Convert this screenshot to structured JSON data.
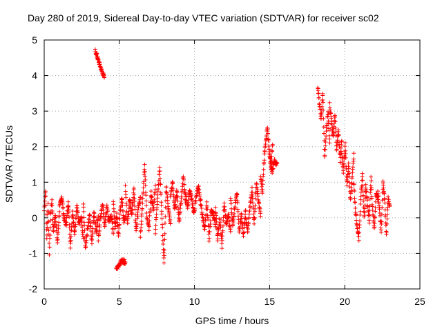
{
  "chart_data": {
    "type": "scatter",
    "title": "Day 280 of 2019, Sidereal Day-to-day VTEC variation (SDTVAR) for receiver sc02",
    "xlabel": "GPS time / hours",
    "ylabel": "SDTVAR / TECUs",
    "xlim": [
      0,
      25
    ],
    "ylim": [
      -2,
      5
    ],
    "xticks": [
      "0",
      "5",
      "10",
      "15",
      "20",
      "25"
    ],
    "yticks": [
      "-2",
      "-1",
      "0",
      "1",
      "2",
      "3",
      "4",
      "5"
    ],
    "grid": true,
    "marker": "+",
    "color": "#ff0000",
    "series": [
      {
        "name": "SDTVAR",
        "segments": [
          {
            "x0": 0.0,
            "x1": 0.6,
            "y": [
              0.2,
              0.8,
              -0.6,
              0.4,
              -1.0,
              0.1,
              0.5,
              -0.3
            ]
          },
          {
            "x0": 0.6,
            "x1": 1.6,
            "y": [
              -0.4,
              0.1,
              -0.7,
              0.3,
              0.6,
              0.0,
              -0.2,
              0.4
            ]
          },
          {
            "x0": 1.6,
            "x1": 2.6,
            "y": [
              0.5,
              -0.8,
              0.2,
              -0.5,
              0.4,
              -0.2,
              0.0,
              -0.6
            ]
          },
          {
            "x0": 2.6,
            "x1": 3.6,
            "y": [
              0.4,
              -0.9,
              -0.3,
              0.1,
              -0.7,
              0.2,
              -0.4,
              0.0
            ]
          },
          {
            "x0": 3.4,
            "x1": 4.0,
            "y": [
              4.7,
              4.5,
              4.3,
              4.1,
              3.95
            ]
          },
          {
            "x0": 3.6,
            "x1": 4.6,
            "y": [
              -0.6,
              0.0,
              0.4,
              -0.2,
              0.3,
              -0.1,
              0.1,
              -0.4
            ]
          },
          {
            "x0": 4.6,
            "x1": 5.4,
            "y": [
              0.5,
              -0.3,
              0.1,
              -0.5,
              0.2,
              0.6,
              -0.1,
              0.0
            ]
          },
          {
            "x0": 4.8,
            "x1": 5.4,
            "y": [
              -1.45,
              -1.3,
              -1.2,
              -1.25
            ]
          },
          {
            "x0": 5.4,
            "x1": 6.4,
            "y": [
              0.9,
              -0.2,
              0.5,
              0.1,
              0.8,
              -0.4,
              0.3,
              0.6
            ]
          },
          {
            "x0": 6.4,
            "x1": 7.4,
            "y": [
              -0.5,
              0.4,
              1.5,
              0.0,
              -0.3,
              0.7,
              0.2,
              0.9
            ]
          },
          {
            "x0": 7.4,
            "x1": 8.4,
            "y": [
              -0.4,
              0.6,
              1.4,
              0.1,
              -1.3,
              0.9,
              0.3,
              -0.2
            ]
          },
          {
            "x0": 8.4,
            "x1": 9.4,
            "y": [
              0.6,
              1.0,
              0.2,
              0.8,
              -0.1,
              0.5,
              1.2,
              0.4
            ]
          },
          {
            "x0": 9.4,
            "x1": 10.4,
            "y": [
              0.7,
              0.3,
              0.8,
              0.5,
              0.1,
              0.6,
              0.9,
              0.4
            ]
          },
          {
            "x0": 10.4,
            "x1": 11.4,
            "y": [
              0.5,
              0.0,
              -0.3,
              0.4,
              -0.6,
              0.2,
              0.1,
              -0.2
            ]
          },
          {
            "x0": 11.4,
            "x1": 12.4,
            "y": [
              0.3,
              -0.6,
              0.0,
              -0.8,
              0.4,
              -0.2,
              0.1,
              -0.4
            ]
          },
          {
            "x0": 12.4,
            "x1": 13.4,
            "y": [
              0.6,
              -0.2,
              0.3,
              0.7,
              -0.4,
              0.1,
              -0.5,
              0.2
            ]
          },
          {
            "x0": 13.4,
            "x1": 14.4,
            "y": [
              0.0,
              -0.4,
              0.3,
              0.8,
              -0.2,
              1.0,
              0.5,
              0.1
            ]
          },
          {
            "x0": 14.4,
            "x1": 15.2,
            "y": [
              1.2,
              0.7,
              1.6,
              2.2,
              2.5,
              1.9,
              1.4,
              2.1
            ]
          },
          {
            "x0": 15.0,
            "x1": 15.5,
            "y": [
              1.8,
              1.3,
              1.6,
              1.5
            ]
          },
          {
            "x0": 18.2,
            "x1": 19.0,
            "y": [
              3.7,
              3.2,
              2.8,
              3.5,
              1.7,
              2.4,
              3.0,
              2.1
            ]
          },
          {
            "x0": 19.0,
            "x1": 19.8,
            "y": [
              3.2,
              2.7,
              2.3,
              2.9,
              1.9,
              2.5,
              1.6,
              2.2
            ]
          },
          {
            "x0": 19.8,
            "x1": 20.6,
            "y": [
              1.8,
              1.3,
              2.1,
              0.9,
              1.5,
              0.5,
              1.1,
              1.8
            ]
          },
          {
            "x0": 20.6,
            "x1": 21.4,
            "y": [
              1.0,
              0.2,
              -0.3,
              -0.6,
              0.5,
              1.2,
              0.0,
              0.8
            ]
          },
          {
            "x0": 21.4,
            "x1": 22.2,
            "y": [
              0.9,
              0.4,
              -0.1,
              1.1,
              0.2,
              -0.3,
              0.7,
              0.5
            ]
          },
          {
            "x0": 22.2,
            "x1": 23.0,
            "y": [
              0.8,
              0.2,
              -0.4,
              1.0,
              0.5,
              -0.5,
              0.6,
              0.3
            ]
          }
        ]
      }
    ]
  }
}
